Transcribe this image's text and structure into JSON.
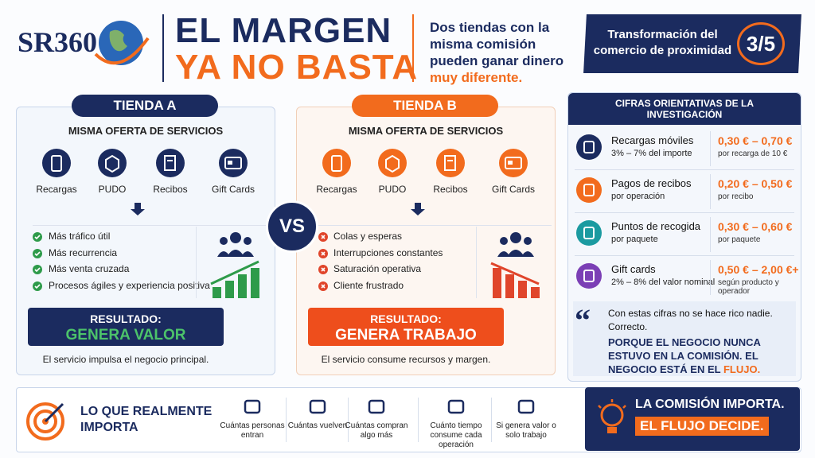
{
  "header": {
    "logo": "SR360",
    "title_line1": "EL MARGEN",
    "title_line2": "YA NO BASTA",
    "subtitle": "Dos tiendas con la misma comisión pueden ganar dinero",
    "subtitle_highlight": "muy diferente.",
    "badge": "Transformación del comercio de proximidad",
    "badge_number": "3/5"
  },
  "stores": [
    {
      "label": "TIENDA A",
      "services_title": "MISMA OFERTA DE SERVICIOS",
      "services": [
        "Recargas",
        "PUDO",
        "Recibos",
        "Gift Cards"
      ],
      "points": [
        "Más tráfico útil",
        "Más recurrencia",
        "Más venta cruzada",
        "Procesos ágiles y experiencia positiva"
      ],
      "result_label": "RESULTADO:",
      "result": "GENERA VALOR",
      "note": "El servicio impulsa el negocio principal."
    },
    {
      "label": "TIENDA B",
      "services_title": "MISMA OFERTA DE SERVICIOS",
      "services": [
        "Recargas",
        "PUDO",
        "Recibos",
        "Gift Cards"
      ],
      "points": [
        "Colas y esperas",
        "Interrupciones constantes",
        "Saturación operativa",
        "Cliente frustrado"
      ],
      "result_label": "RESULTADO:",
      "result": "GENERA TRABAJO",
      "note": "El servicio consume recursos y margen."
    }
  ],
  "vs": "VS",
  "figures": {
    "title": "CIFRAS ORIENTATIVAS DE LA INVESTIGACIÓN",
    "rows": [
      {
        "name": "Recargas móviles",
        "detail": "3% – 7% del importe",
        "range": "0,30 € – 0,70 €",
        "unit": "por recarga de 10 €"
      },
      {
        "name": "Pagos de recibos",
        "detail": "por operación",
        "range": "0,20 € – 0,50 €",
        "unit": "por recibo"
      },
      {
        "name": "Puntos de recogida",
        "detail": "por paquete",
        "range": "0,30 € – 0,60 €",
        "unit": "por paquete"
      },
      {
        "name": "Gift cards",
        "detail": "2% – 8% del valor nominal",
        "range": "0,50 € – 2,00 €+",
        "unit": "según producto y operador"
      }
    ],
    "quote": {
      "line1": "Con estas cifras no se hace rico nadie.",
      "line2": "Correcto.",
      "statement": "PORQUE EL NEGOCIO NUNCA ESTUVO EN LA COMISIÓN. EL NEGOCIO ESTÁ EN EL",
      "highlight": "FLUJO."
    }
  },
  "footer": {
    "title": "LO QUE REALMENTE IMPORTA",
    "items": [
      "Cuántas personas entran",
      "Cuántas vuelven",
      "Cuántas compran algo más",
      "Cuánto tiempo consume cada operación",
      "Si genera valor o solo trabajo"
    ],
    "closing_line1": "LA COMISIÓN IMPORTA.",
    "closing_line2": "EL FLUJO DECIDE."
  }
}
